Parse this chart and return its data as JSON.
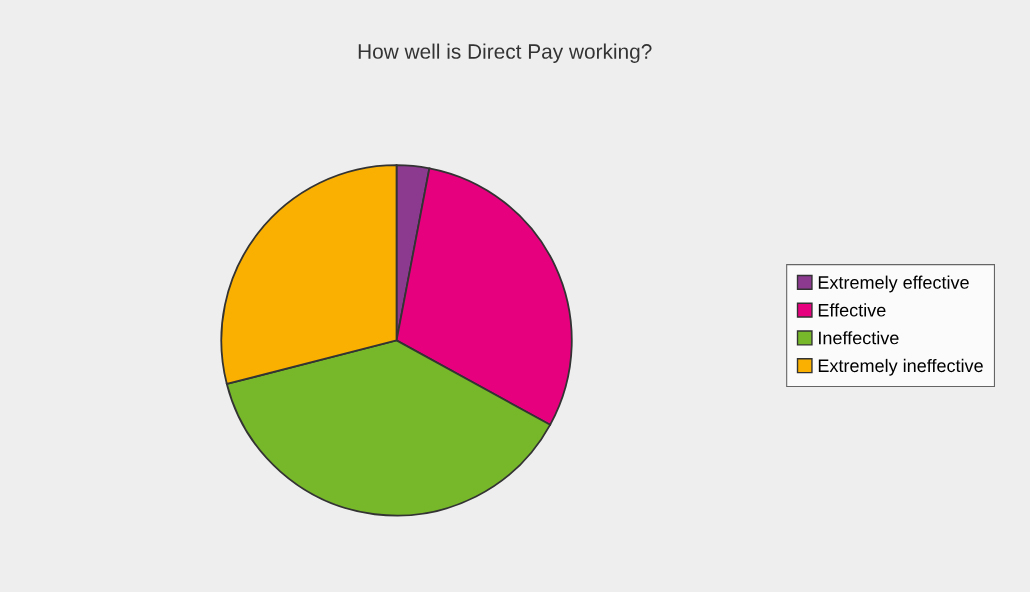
{
  "chart_data": {
    "type": "pie",
    "title": "How well is Direct Pay working?",
    "categories": [
      "Extremely effective",
      "Effective",
      "Ineffective",
      "Extremely ineffective"
    ],
    "values": [
      3,
      30,
      38,
      29
    ],
    "colors": [
      "#8b3a8f",
      "#e6007e",
      "#77b82a",
      "#f9b000"
    ],
    "legend": "right"
  }
}
